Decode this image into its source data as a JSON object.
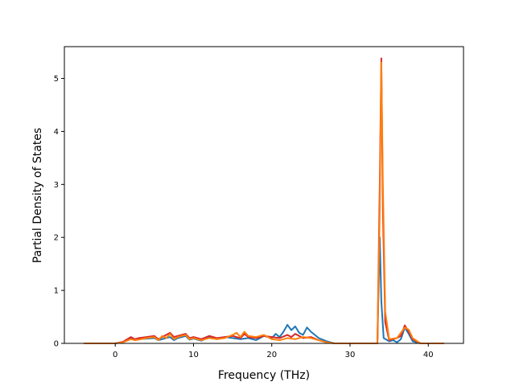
{
  "chart_data": {
    "type": "line",
    "title": "",
    "xlabel": "Frequency (THz)",
    "ylabel": "Partial Density of States",
    "xlim": [
      -6.5,
      44.5
    ],
    "ylim": [
      0,
      5.6
    ],
    "xticks": [
      0,
      10,
      20,
      30,
      40
    ],
    "yticks": [
      0,
      1,
      2,
      3,
      4,
      5
    ],
    "grid": false,
    "legend": "none",
    "series": [
      {
        "color": "#1f77b4",
        "points": [
          [
            -4,
            0
          ],
          [
            -2,
            0
          ],
          [
            0,
            0
          ],
          [
            1,
            0.02
          ],
          [
            2,
            0.1
          ],
          [
            2.5,
            0.06
          ],
          [
            3,
            0.08
          ],
          [
            4,
            0.09
          ],
          [
            5,
            0.1
          ],
          [
            5.5,
            0.06
          ],
          [
            6,
            0.08
          ],
          [
            7,
            0.12
          ],
          [
            7.5,
            0.06
          ],
          [
            8,
            0.1
          ],
          [
            9,
            0.14
          ],
          [
            9.5,
            0.07
          ],
          [
            10,
            0.09
          ],
          [
            11,
            0.05
          ],
          [
            12,
            0.12
          ],
          [
            13,
            0.08
          ],
          [
            14,
            0.12
          ],
          [
            15,
            0.1
          ],
          [
            16,
            0.08
          ],
          [
            17,
            0.1
          ],
          [
            18,
            0.06
          ],
          [
            19,
            0.14
          ],
          [
            20,
            0.1
          ],
          [
            20.5,
            0.18
          ],
          [
            21,
            0.12
          ],
          [
            21.5,
            0.22
          ],
          [
            22,
            0.35
          ],
          [
            22.5,
            0.25
          ],
          [
            23,
            0.32
          ],
          [
            23.5,
            0.2
          ],
          [
            24,
            0.16
          ],
          [
            24.5,
            0.3
          ],
          [
            25,
            0.22
          ],
          [
            26,
            0.1
          ],
          [
            27,
            0.04
          ],
          [
            28,
            0
          ],
          [
            33.5,
            0
          ],
          [
            33.8,
            2.0
          ],
          [
            34,
            0.8
          ],
          [
            34.3,
            0.1
          ],
          [
            35,
            0.04
          ],
          [
            35.5,
            0.06
          ],
          [
            36,
            0.02
          ],
          [
            36.5,
            0.08
          ],
          [
            37,
            0.3
          ],
          [
            37.5,
            0.18
          ],
          [
            38,
            0.04
          ],
          [
            39,
            0
          ],
          [
            42,
            0
          ]
        ]
      },
      {
        "color": "#d62728",
        "points": [
          [
            -4,
            0
          ],
          [
            -2,
            0
          ],
          [
            0,
            0
          ],
          [
            1,
            0.03
          ],
          [
            2,
            0.12
          ],
          [
            2.5,
            0.08
          ],
          [
            3,
            0.1
          ],
          [
            4,
            0.12
          ],
          [
            5,
            0.14
          ],
          [
            5.5,
            0.08
          ],
          [
            6,
            0.12
          ],
          [
            6.5,
            0.16
          ],
          [
            7,
            0.2
          ],
          [
            7.5,
            0.12
          ],
          [
            8,
            0.14
          ],
          [
            9,
            0.18
          ],
          [
            9.5,
            0.1
          ],
          [
            10,
            0.12
          ],
          [
            11,
            0.08
          ],
          [
            12,
            0.14
          ],
          [
            13,
            0.1
          ],
          [
            14,
            0.12
          ],
          [
            15,
            0.14
          ],
          [
            16,
            0.1
          ],
          [
            16.5,
            0.18
          ],
          [
            17,
            0.12
          ],
          [
            18,
            0.1
          ],
          [
            19,
            0.14
          ],
          [
            20,
            0.12
          ],
          [
            21,
            0.1
          ],
          [
            22,
            0.16
          ],
          [
            22.5,
            0.12
          ],
          [
            23,
            0.18
          ],
          [
            24,
            0.1
          ],
          [
            25,
            0.12
          ],
          [
            26,
            0.06
          ],
          [
            27,
            0.02
          ],
          [
            28,
            0
          ],
          [
            33.5,
            0
          ],
          [
            33.8,
            3.0
          ],
          [
            34,
            5.38
          ],
          [
            34.2,
            2.5
          ],
          [
            34.5,
            0.4
          ],
          [
            35,
            0.06
          ],
          [
            36,
            0.1
          ],
          [
            36.5,
            0.14
          ],
          [
            37,
            0.34
          ],
          [
            37.5,
            0.22
          ],
          [
            38,
            0.08
          ],
          [
            39,
            0
          ],
          [
            42,
            0
          ]
        ]
      },
      {
        "color": "#ff7f0e",
        "points": [
          [
            -4,
            0
          ],
          [
            -2,
            0
          ],
          [
            0,
            0
          ],
          [
            1,
            0.02
          ],
          [
            2,
            0.08
          ],
          [
            2.5,
            0.06
          ],
          [
            3,
            0.07
          ],
          [
            4,
            0.1
          ],
          [
            5,
            0.12
          ],
          [
            5.5,
            0.06
          ],
          [
            6,
            0.14
          ],
          [
            6.5,
            0.1
          ],
          [
            7,
            0.18
          ],
          [
            7.5,
            0.08
          ],
          [
            8,
            0.12
          ],
          [
            9,
            0.16
          ],
          [
            9.5,
            0.08
          ],
          [
            10,
            0.1
          ],
          [
            11,
            0.06
          ],
          [
            12,
            0.1
          ],
          [
            13,
            0.08
          ],
          [
            14,
            0.1
          ],
          [
            15,
            0.16
          ],
          [
            15.5,
            0.2
          ],
          [
            16,
            0.12
          ],
          [
            16.5,
            0.22
          ],
          [
            17,
            0.14
          ],
          [
            18,
            0.12
          ],
          [
            19,
            0.16
          ],
          [
            20,
            0.08
          ],
          [
            21,
            0.06
          ],
          [
            22,
            0.1
          ],
          [
            23,
            0.08
          ],
          [
            24,
            0.12
          ],
          [
            25,
            0.1
          ],
          [
            26,
            0.06
          ],
          [
            27,
            0.02
          ],
          [
            28,
            0
          ],
          [
            33.5,
            0
          ],
          [
            33.8,
            2.5
          ],
          [
            34,
            5.3
          ],
          [
            34.2,
            3.0
          ],
          [
            34.5,
            0.6
          ],
          [
            35,
            0.08
          ],
          [
            36,
            0.1
          ],
          [
            36.5,
            0.2
          ],
          [
            37,
            0.3
          ],
          [
            37.5,
            0.26
          ],
          [
            38,
            0.1
          ],
          [
            39,
            0
          ],
          [
            42,
            0
          ]
        ]
      }
    ]
  }
}
